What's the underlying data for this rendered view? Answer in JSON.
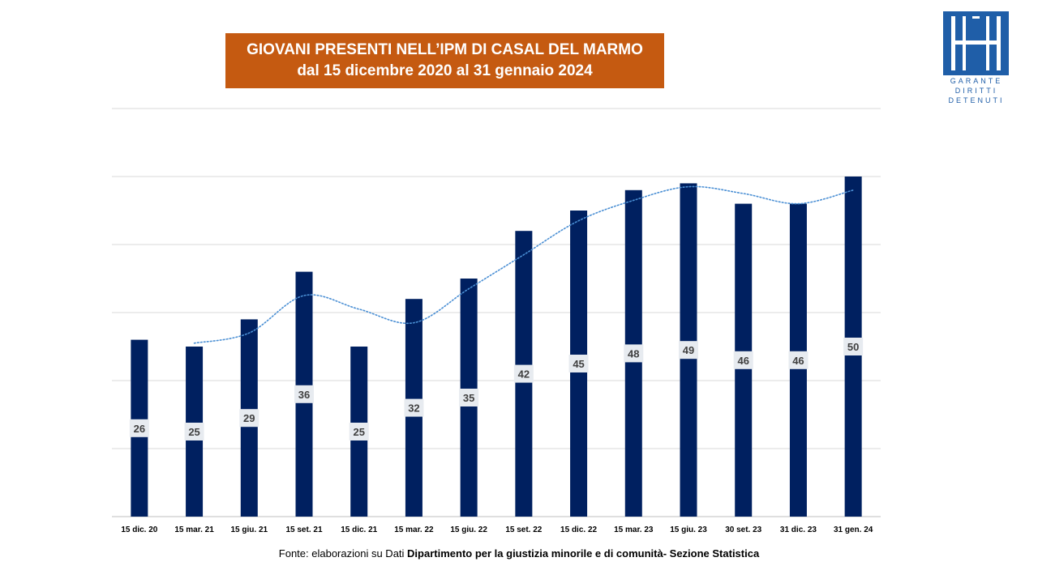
{
  "title": {
    "line1": "GIOVANI PRESENTI NELL’IPM DI CASAL DEL MARMO",
    "line2": "dal 15 dicembre 2020 al 31 gennaio 2024"
  },
  "logo": {
    "line1": "GARANTE",
    "line2": "DIRITTI",
    "line3": "DETENUTI"
  },
  "source": {
    "prefix": "Fonte:  elaborazioni su Dati ",
    "bold": "Dipartimento per la giustizia minorile e di comunità- Sezione Statistica"
  },
  "colors": {
    "bar": "#002060",
    "trend": "#4a8fd4",
    "title_bg": "#c55a11",
    "logo": "#1f5ea8"
  },
  "chart_data": {
    "type": "bar",
    "categories": [
      "15 dic. 20",
      "15 mar. 21",
      "15 giu. 21",
      "15 set. 21",
      "15 dic. 21",
      "15 mar. 22",
      "15 giu. 22",
      "15 set. 22",
      "15 dic. 22",
      "15 mar. 23",
      "15 giu. 23",
      "30 set. 23",
      "31 dic. 23",
      "31 gen. 24"
    ],
    "values": [
      26,
      25,
      29,
      36,
      25,
      32,
      35,
      42,
      45,
      48,
      49,
      46,
      46,
      50
    ],
    "trendline": {
      "type": "moving-average",
      "period": 2,
      "style": "dotted"
    },
    "ylim": [
      0,
      60
    ],
    "y_gridlines": [
      0,
      10,
      20,
      30,
      40,
      50,
      60
    ],
    "grid": true,
    "show_y_tick_labels": false
  }
}
